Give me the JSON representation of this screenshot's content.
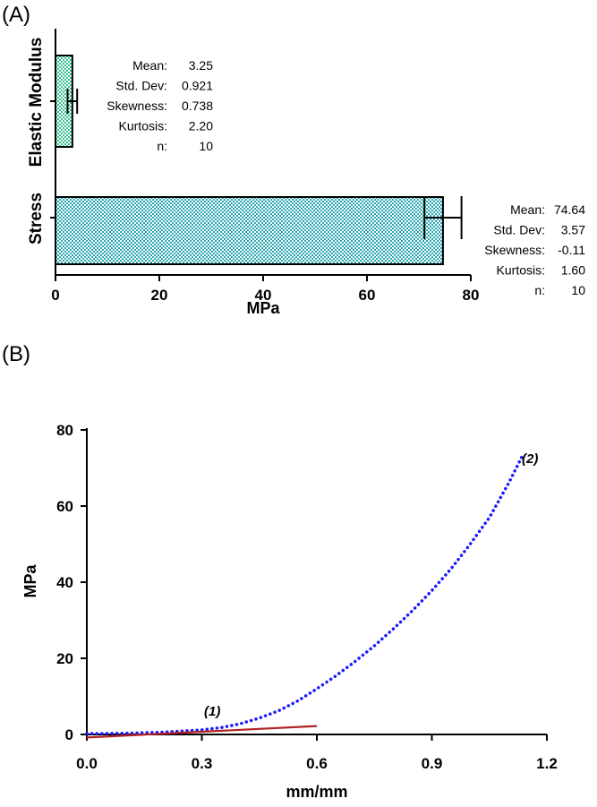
{
  "panels": {
    "a": "(A)",
    "b": "(B)"
  },
  "chart_data": [
    {
      "type": "bar",
      "orientation": "horizontal",
      "categories": [
        "Elastic Modulus",
        "Stress"
      ],
      "values": [
        3.25,
        74.64
      ],
      "errors": [
        0.921,
        3.57
      ],
      "xlabel": "MPa",
      "xlim": [
        0,
        80
      ],
      "xticks": [
        "0",
        "20",
        "40",
        "60",
        "80"
      ],
      "colors": [
        "#34c48a",
        "#2aa8b0"
      ],
      "stats": [
        {
          "labels": [
            "Mean:",
            "Std. Dev:",
            "Skewness:",
            "Kurtosis:",
            "n:"
          ],
          "values": [
            "3.25",
            "0.921",
            "0.738",
            "2.20",
            "10"
          ]
        },
        {
          "labels": [
            "Mean:",
            "Std. Dev:",
            "Skewness:",
            "Kurtosis:",
            "n:"
          ],
          "values": [
            "74.64",
            "3.57",
            "-0.11",
            "1.60",
            "10"
          ]
        }
      ]
    },
    {
      "type": "line",
      "xlabel": "mm/mm",
      "ylabel": "MPa",
      "xlim": [
        0,
        1.2
      ],
      "ylim": [
        0,
        80
      ],
      "xticks": [
        "0.0",
        "0.3",
        "0.6",
        "0.9",
        "1.2"
      ],
      "yticks": [
        "0",
        "20",
        "40",
        "60",
        "80"
      ],
      "series": [
        {
          "color": "#1a1aff",
          "style": "dotted",
          "x": [
            0.0,
            0.1,
            0.2,
            0.3,
            0.35,
            0.4,
            0.45,
            0.5,
            0.55,
            0.6,
            0.65,
            0.7,
            0.75,
            0.8,
            0.85,
            0.9,
            0.95,
            1.0,
            1.05,
            1.1,
            1.135
          ],
          "y": [
            0.2,
            0.3,
            0.6,
            1.2,
            1.8,
            2.8,
            4.3,
            6.2,
            8.8,
            12.0,
            15.4,
            19.2,
            23.3,
            27.8,
            32.6,
            37.8,
            43.5,
            50.0,
            57.0,
            66.0,
            73.0
          ]
        },
        {
          "color": "#b22222",
          "style": "solid",
          "x": [
            0.0,
            0.6
          ],
          "y": [
            -0.8,
            2.2
          ]
        }
      ],
      "annotations": [
        "(1)",
        "(2)"
      ]
    }
  ]
}
